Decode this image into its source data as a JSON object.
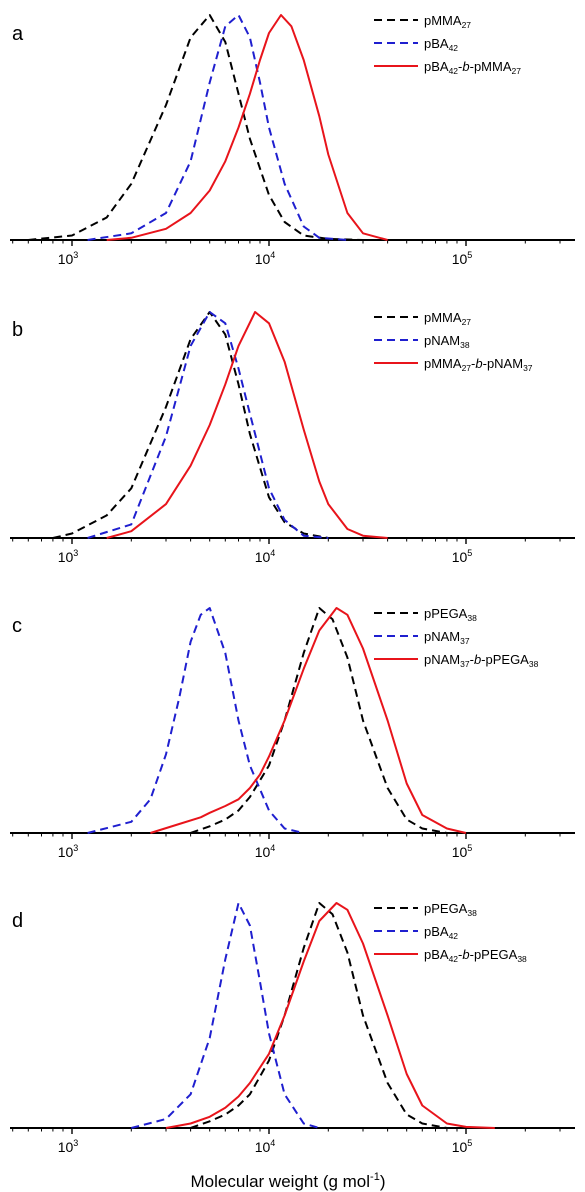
{
  "figure": {
    "xlabel": "Molecular weight (g mol",
    "xlabel_sup": "-1",
    "xlabel_tail": ")"
  },
  "chart_data": [
    {
      "type": "line",
      "panel": "a",
      "x_scale": "log",
      "xlim": [
        500,
        300000
      ],
      "xticks": [
        {
          "value": 1000,
          "base": "10",
          "exp": "3"
        },
        {
          "value": 10000,
          "base": "10",
          "exp": "4"
        },
        {
          "value": 100000,
          "base": "10",
          "exp": "5"
        }
      ],
      "y_ticks_shown": false,
      "grid": false,
      "legend_position": "top-right",
      "series": [
        {
          "name": "pMMA27",
          "legend": [
            {
              "t": "pMMA"
            },
            {
              "t": "27",
              "sub": true
            }
          ],
          "color": "#000000",
          "dash": true,
          "x": [
            600,
            1000,
            1500,
            2000,
            3000,
            4000,
            5000,
            6000,
            7000,
            8000,
            10000,
            12000,
            15000,
            20000,
            30000
          ],
          "y": [
            0,
            0.02,
            0.1,
            0.25,
            0.6,
            0.9,
            1.0,
            0.88,
            0.65,
            0.45,
            0.2,
            0.08,
            0.02,
            0.005,
            0
          ]
        },
        {
          "name": "pBA42",
          "legend": [
            {
              "t": "pBA"
            },
            {
              "t": "42",
              "sub": true
            }
          ],
          "color": "#1f1fcf",
          "dash": true,
          "x": [
            1200,
            2000,
            3000,
            4000,
            5000,
            6000,
            7000,
            8000,
            9000,
            10000,
            12000,
            15000,
            18000,
            25000
          ],
          "y": [
            0,
            0.03,
            0.12,
            0.35,
            0.7,
            0.95,
            1.0,
            0.9,
            0.7,
            0.5,
            0.25,
            0.06,
            0.01,
            0
          ]
        },
        {
          "name": "pBA42-b-pMMA27",
          "legend": [
            {
              "t": "pBA"
            },
            {
              "t": "42",
              "sub": true
            },
            {
              "t": "-"
            },
            {
              "t": "b",
              "italic": true
            },
            {
              "t": "-pMMA"
            },
            {
              "t": "27",
              "sub": true
            }
          ],
          "color": "#e8141b",
          "dash": false,
          "x": [
            1500,
            2000,
            3000,
            4000,
            5000,
            6000,
            7000,
            8000,
            9000,
            10000,
            11500,
            13000,
            15000,
            18000,
            20000,
            25000,
            30000,
            40000
          ],
          "y": [
            0,
            0.01,
            0.05,
            0.12,
            0.22,
            0.35,
            0.5,
            0.65,
            0.8,
            0.92,
            1.0,
            0.95,
            0.8,
            0.55,
            0.38,
            0.12,
            0.03,
            0
          ]
        }
      ]
    },
    {
      "type": "line",
      "panel": "b",
      "x_scale": "log",
      "xlim": [
        500,
        300000
      ],
      "xticks": [
        {
          "value": 1000,
          "base": "10",
          "exp": "3"
        },
        {
          "value": 10000,
          "base": "10",
          "exp": "4"
        },
        {
          "value": 100000,
          "base": "10",
          "exp": "5"
        }
      ],
      "y_ticks_shown": false,
      "grid": false,
      "legend_position": "top-right",
      "series": [
        {
          "name": "pMMA27",
          "legend": [
            {
              "t": "pMMA"
            },
            {
              "t": "27",
              "sub": true
            }
          ],
          "color": "#000000",
          "dash": true,
          "x": [
            800,
            1000,
            1500,
            2000,
            3000,
            4000,
            5000,
            6000,
            7000,
            8000,
            10000,
            12000,
            15000,
            20000
          ],
          "y": [
            0,
            0.02,
            0.1,
            0.22,
            0.58,
            0.88,
            1.0,
            0.9,
            0.68,
            0.46,
            0.18,
            0.07,
            0.02,
            0
          ]
        },
        {
          "name": "pNAM38",
          "legend": [
            {
              "t": "pNAM"
            },
            {
              "t": "38",
              "sub": true
            }
          ],
          "color": "#1f1fcf",
          "dash": true,
          "x": [
            1200,
            2000,
            3000,
            4000,
            5000,
            6000,
            7000,
            8000,
            10000,
            12000,
            15000,
            20000
          ],
          "y": [
            0,
            0.06,
            0.45,
            0.85,
            1.0,
            0.95,
            0.75,
            0.55,
            0.22,
            0.08,
            0.01,
            0
          ]
        },
        {
          "name": "pMMA27-b-pNAM37",
          "legend": [
            {
              "t": "pMMA"
            },
            {
              "t": "27",
              "sub": true
            },
            {
              "t": "-"
            },
            {
              "t": "b",
              "italic": true
            },
            {
              "t": "-pNAM"
            },
            {
              "t": "37",
              "sub": true
            }
          ],
          "color": "#e8141b",
          "dash": false,
          "x": [
            1500,
            2000,
            3000,
            4000,
            5000,
            6000,
            7000,
            8500,
            10000,
            12000,
            15000,
            18000,
            20000,
            25000,
            30000,
            40000
          ],
          "y": [
            0,
            0.03,
            0.15,
            0.32,
            0.5,
            0.68,
            0.85,
            1.0,
            0.95,
            0.78,
            0.48,
            0.25,
            0.15,
            0.04,
            0.01,
            0
          ]
        }
      ]
    },
    {
      "type": "line",
      "panel": "c",
      "x_scale": "log",
      "xlim": [
        500,
        300000
      ],
      "xticks": [
        {
          "value": 1000,
          "base": "10",
          "exp": "3"
        },
        {
          "value": 10000,
          "base": "10",
          "exp": "4"
        },
        {
          "value": 100000,
          "base": "10",
          "exp": "5"
        }
      ],
      "y_ticks_shown": false,
      "grid": false,
      "legend_position": "top-right",
      "series": [
        {
          "name": "pPEGA38",
          "legend": [
            {
              "t": "pPEGA"
            },
            {
              "t": "38",
              "sub": true
            }
          ],
          "color": "#000000",
          "dash": true,
          "x": [
            4000,
            5000,
            6000,
            7000,
            8000,
            10000,
            12000,
            15000,
            18000,
            21000,
            25000,
            30000,
            40000,
            50000,
            60000,
            80000
          ],
          "y": [
            0,
            0.03,
            0.06,
            0.1,
            0.16,
            0.3,
            0.5,
            0.8,
            1.0,
            0.95,
            0.78,
            0.5,
            0.2,
            0.06,
            0.02,
            0
          ]
        },
        {
          "name": "pNAM37",
          "legend": [
            {
              "t": "pNAM"
            },
            {
              "t": "37",
              "sub": true
            }
          ],
          "color": "#1f1fcf",
          "dash": true,
          "x": [
            1200,
            2000,
            2500,
            3000,
            3500,
            4000,
            4500,
            5000,
            6000,
            7000,
            8000,
            10000,
            12000,
            15000
          ],
          "y": [
            0,
            0.05,
            0.15,
            0.35,
            0.6,
            0.85,
            0.97,
            1.0,
            0.8,
            0.5,
            0.3,
            0.1,
            0.02,
            0
          ]
        },
        {
          "name": "pNAM37-b-pPEGA38",
          "legend": [
            {
              "t": "pNAM"
            },
            {
              "t": "37",
              "sub": true
            },
            {
              "t": "-"
            },
            {
              "t": "b",
              "italic": true
            },
            {
              "t": "-pPEGA"
            },
            {
              "t": "38",
              "sub": true
            }
          ],
          "color": "#e8141b",
          "dash": false,
          "x": [
            2500,
            3500,
            4500,
            5000,
            6000,
            7000,
            8000,
            9000,
            10000,
            12000,
            15000,
            18000,
            22000,
            25000,
            30000,
            40000,
            50000,
            60000,
            80000,
            100000
          ],
          "y": [
            0,
            0.04,
            0.07,
            0.09,
            0.12,
            0.15,
            0.2,
            0.26,
            0.34,
            0.5,
            0.73,
            0.9,
            1.0,
            0.97,
            0.82,
            0.5,
            0.22,
            0.08,
            0.02,
            0
          ]
        }
      ]
    },
    {
      "type": "line",
      "panel": "d",
      "x_scale": "log",
      "xlim": [
        500,
        300000
      ],
      "xticks": [
        {
          "value": 1000,
          "base": "10",
          "exp": "3"
        },
        {
          "value": 10000,
          "base": "10",
          "exp": "4"
        },
        {
          "value": 100000,
          "base": "10",
          "exp": "5"
        }
      ],
      "y_ticks_shown": false,
      "grid": false,
      "legend_position": "top-right",
      "series": [
        {
          "name": "pPEGA38",
          "legend": [
            {
              "t": "pPEGA"
            },
            {
              "t": "38",
              "sub": true
            }
          ],
          "color": "#000000",
          "dash": true,
          "x": [
            4000,
            5000,
            6000,
            7000,
            8000,
            10000,
            12000,
            15000,
            18000,
            21000,
            25000,
            30000,
            40000,
            50000,
            60000,
            80000
          ],
          "y": [
            0,
            0.03,
            0.06,
            0.1,
            0.15,
            0.3,
            0.5,
            0.8,
            1.0,
            0.95,
            0.78,
            0.5,
            0.2,
            0.06,
            0.02,
            0
          ]
        },
        {
          "name": "pBA42",
          "legend": [
            {
              "t": "pBA"
            },
            {
              "t": "42",
              "sub": true
            }
          ],
          "color": "#1f1fcf",
          "dash": true,
          "x": [
            2000,
            3000,
            4000,
            5000,
            6000,
            7000,
            8000,
            9000,
            10000,
            12000,
            15000,
            18000
          ],
          "y": [
            0,
            0.04,
            0.15,
            0.4,
            0.75,
            1.0,
            0.9,
            0.65,
            0.42,
            0.15,
            0.02,
            0
          ]
        },
        {
          "name": "pBA42-b-pPEGA38",
          "legend": [
            {
              "t": "pBA"
            },
            {
              "t": "42",
              "sub": true
            },
            {
              "t": "-"
            },
            {
              "t": "b",
              "italic": true
            },
            {
              "t": "-pPEGA"
            },
            {
              "t": "38",
              "sub": true
            }
          ],
          "color": "#e8141b",
          "dash": false,
          "x": [
            3000,
            4000,
            5000,
            6000,
            7000,
            8000,
            10000,
            12000,
            15000,
            18000,
            22000,
            25000,
            30000,
            40000,
            50000,
            60000,
            80000,
            100000,
            140000
          ],
          "y": [
            0,
            0.02,
            0.05,
            0.09,
            0.14,
            0.2,
            0.33,
            0.5,
            0.74,
            0.92,
            1.0,
            0.97,
            0.82,
            0.5,
            0.24,
            0.1,
            0.02,
            0.005,
            0
          ]
        }
      ]
    }
  ]
}
